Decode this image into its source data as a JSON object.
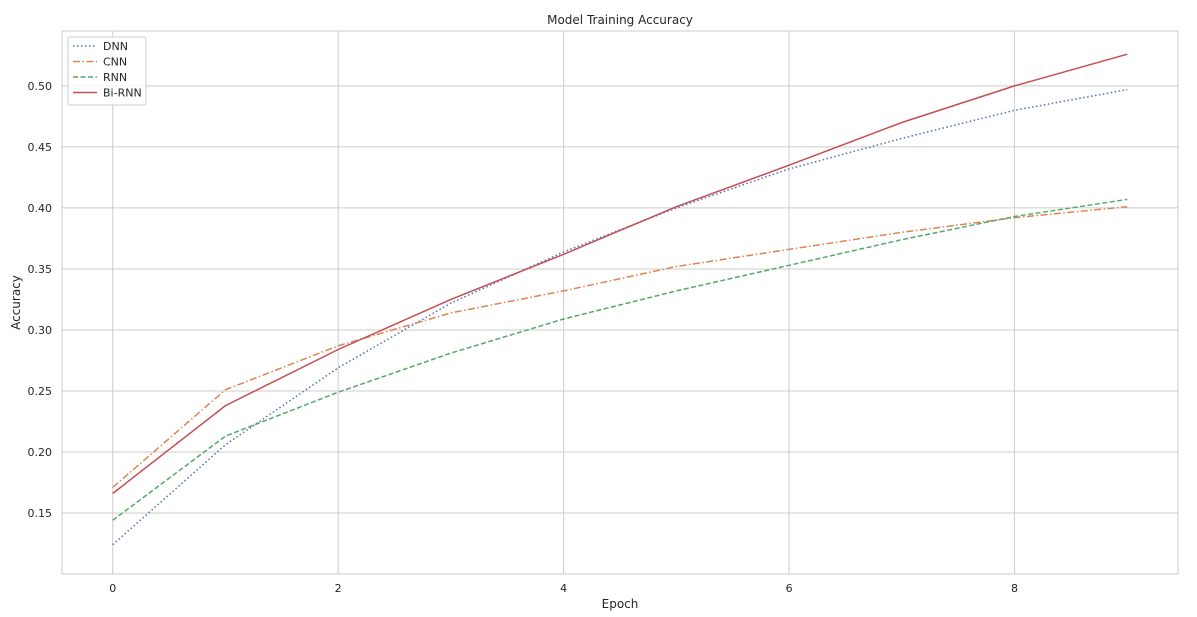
{
  "chart_data": {
    "type": "line",
    "title": "Model Training Accuracy",
    "xlabel": "Epoch",
    "ylabel": "Accuracy",
    "x": [
      0,
      1,
      2,
      3,
      4,
      5,
      6,
      7,
      8,
      9
    ],
    "xlim": [
      -0.45,
      9.45
    ],
    "ylim": [
      0.1,
      0.545
    ],
    "xticks": [
      0,
      2,
      4,
      6,
      8
    ],
    "yticks": [
      0.15,
      0.2,
      0.25,
      0.3,
      0.35,
      0.4,
      0.45,
      0.5
    ],
    "ytick_labels": [
      "0.15",
      "0.20",
      "0.25",
      "0.30",
      "0.35",
      "0.40",
      "0.45",
      "0.50"
    ],
    "grid": true,
    "legend_position": "top-left",
    "series": [
      {
        "name": "DNN",
        "color": "#4c72b0",
        "style": "dotted",
        "values": [
          0.124,
          0.206,
          0.269,
          0.322,
          0.364,
          0.4,
          0.432,
          0.457,
          0.48,
          0.497
        ]
      },
      {
        "name": "CNN",
        "color": "#dd8452",
        "style": "dashdot",
        "values": [
          0.171,
          0.251,
          0.287,
          0.314,
          0.332,
          0.352,
          0.366,
          0.38,
          0.392,
          0.401
        ]
      },
      {
        "name": "RNN",
        "color": "#55a868",
        "style": "dashed",
        "values": [
          0.144,
          0.213,
          0.249,
          0.281,
          0.309,
          0.332,
          0.353,
          0.374,
          0.393,
          0.407
        ]
      },
      {
        "name": "Bi-RNN",
        "color": "#c44e52",
        "style": "solid",
        "values": [
          0.166,
          0.238,
          0.284,
          0.325,
          0.362,
          0.401,
          0.435,
          0.47,
          0.5,
          0.526
        ]
      }
    ]
  }
}
